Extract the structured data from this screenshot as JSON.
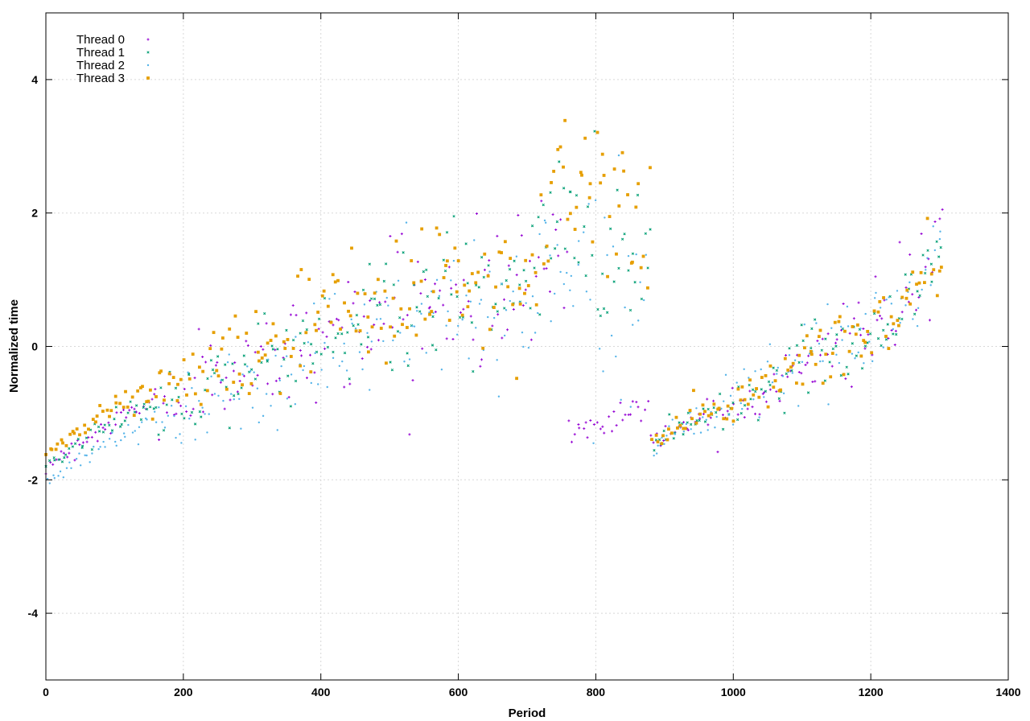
{
  "chart_data": {
    "type": "scatter",
    "title": "",
    "xlabel": "Period",
    "ylabel": "Normalized time",
    "xlim": [
      0,
      1400
    ],
    "ylim": [
      -5,
      5
    ],
    "xticks": [
      0,
      200,
      400,
      600,
      800,
      1000,
      1200,
      1400
    ],
    "yticks": [
      -4,
      -2,
      0,
      2,
      4
    ],
    "grid": true,
    "legend_position": "top-left",
    "series": [
      {
        "name": "Thread 0",
        "color": "#9400d3",
        "marker": "plus"
      },
      {
        "name": "Thread 1",
        "color": "#009e73",
        "marker": "cross"
      },
      {
        "name": "Thread 2",
        "color": "#56b4e9",
        "marker": "star"
      },
      {
        "name": "Thread 3",
        "color": "#e69f00",
        "marker": "square"
      }
    ],
    "trend": {
      "description_points_x": [
        0,
        100,
        200,
        300,
        400,
        500,
        600,
        700,
        740,
        800,
        880,
        900,
        1000,
        1100,
        1200,
        1305
      ],
      "segments": [
        {
          "x_range": [
            0,
            880
          ],
          "center": [
            [
              0,
              -1.8
            ],
            [
              50,
              -1.45
            ],
            [
              100,
              -1.1
            ],
            [
              150,
              -0.9
            ],
            [
              200,
              -0.75
            ],
            [
              250,
              -0.45
            ],
            [
              300,
              -0.35
            ],
            [
              350,
              -0.05
            ],
            [
              400,
              0.1
            ],
            [
              450,
              0.35
            ],
            [
              500,
              0.55
            ],
            [
              550,
              0.65
            ],
            [
              600,
              0.75
            ],
            [
              650,
              0.75
            ],
            [
              700,
              0.85
            ],
            [
              740,
              1.8
            ],
            [
              800,
              1.6
            ],
            [
              880,
              1.3
            ]
          ]
        },
        {
          "x_range": [
            760,
            880
          ],
          "thread0_center": [
            [
              760,
              -1.3
            ],
            [
              800,
              -1.2
            ],
            [
              840,
              -1.0
            ],
            [
              880,
              -0.8
            ]
          ]
        },
        {
          "x_range": [
            880,
            1305
          ],
          "center": [
            [
              880,
              -1.45
            ],
            [
              950,
              -1.05
            ],
            [
              1000,
              -0.85
            ],
            [
              1050,
              -0.65
            ],
            [
              1100,
              -0.2
            ],
            [
              1150,
              0.0
            ],
            [
              1200,
              0.2
            ],
            [
              1250,
              0.65
            ],
            [
              1305,
              1.4
            ]
          ]
        }
      ]
    },
    "points_per_series": 320,
    "seed": 12345
  }
}
